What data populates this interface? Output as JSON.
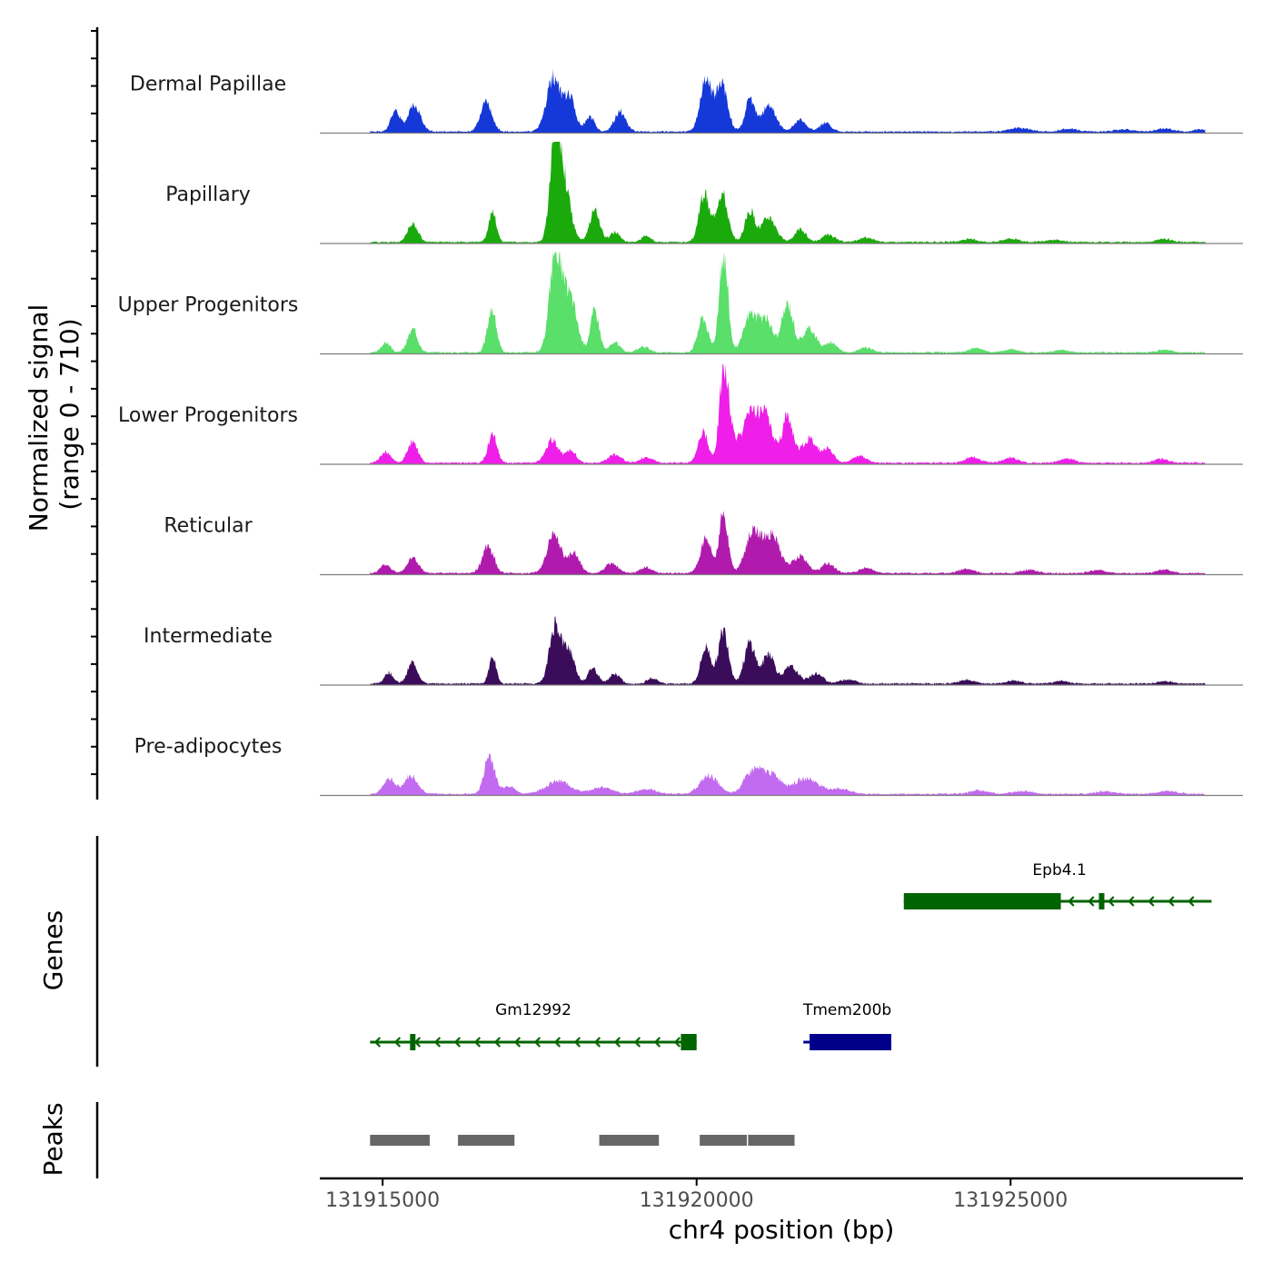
{
  "chart_data": {
    "type": "area",
    "title": "",
    "xlabel": "chr4 position (bp)",
    "ylabel": "Normalized signal",
    "ylabel_range": "(range 0 - 710)",
    "xlim": [
      131914000,
      131928700
    ],
    "ylim": [
      0,
      710
    ],
    "x_ticks": [
      131915000,
      131920000,
      131925000
    ],
    "x_tick_labels": [
      "131915000",
      "131920000",
      "131925000"
    ],
    "series": [
      {
        "name": "Dermal Papillae",
        "color": "#1538D8",
        "peaks": [
          [
            131915200,
            145,
            70
          ],
          [
            131915500,
            190,
            100
          ],
          [
            131916650,
            210,
            90
          ],
          [
            131917720,
            380,
            110
          ],
          [
            131917980,
            230,
            90
          ],
          [
            131918300,
            110,
            70
          ],
          [
            131918780,
            140,
            90
          ],
          [
            131920150,
            360,
            90
          ],
          [
            131920400,
            350,
            90
          ],
          [
            131920850,
            220,
            80
          ],
          [
            131921150,
            190,
            110
          ],
          [
            131921650,
            90,
            90
          ],
          [
            131922050,
            60,
            90
          ],
          [
            131925150,
            25,
            150
          ],
          [
            131925950,
            18,
            150
          ],
          [
            131926800,
            15,
            150
          ],
          [
            131927450,
            22,
            120
          ],
          [
            131928050,
            15,
            120
          ]
        ]
      },
      {
        "name": "Papillary",
        "color": "#1AAA0C",
        "peaks": [
          [
            131915480,
            130,
            80
          ],
          [
            131916750,
            210,
            60
          ],
          [
            131917750,
            720,
            80
          ],
          [
            131917900,
            380,
            100
          ],
          [
            131918380,
            230,
            80
          ],
          [
            131918700,
            70,
            80
          ],
          [
            131919200,
            40,
            80
          ],
          [
            131920120,
            340,
            80
          ],
          [
            131920400,
            360,
            90
          ],
          [
            131920850,
            220,
            80
          ],
          [
            131921150,
            180,
            110
          ],
          [
            131921650,
            90,
            90
          ],
          [
            131922100,
            50,
            100
          ],
          [
            131922700,
            30,
            120
          ],
          [
            131924350,
            20,
            120
          ],
          [
            131925000,
            25,
            120
          ],
          [
            131925700,
            15,
            120
          ],
          [
            131927450,
            22,
            110
          ]
        ]
      },
      {
        "name": "Upper Progenitors",
        "color": "#59DF6A",
        "peaks": [
          [
            131915050,
            70,
            70
          ],
          [
            131915480,
            160,
            80
          ],
          [
            131916740,
            310,
            70
          ],
          [
            131917750,
            720,
            90
          ],
          [
            131917980,
            400,
            110
          ],
          [
            131918380,
            300,
            70
          ],
          [
            131918700,
            70,
            80
          ],
          [
            131919150,
            40,
            90
          ],
          [
            131920100,
            250,
            80
          ],
          [
            131920430,
            690,
            70
          ],
          [
            131920850,
            260,
            100
          ],
          [
            131921100,
            240,
            110
          ],
          [
            131921450,
            340,
            90
          ],
          [
            131921800,
            170,
            110
          ],
          [
            131922150,
            70,
            90
          ],
          [
            131922700,
            35,
            100
          ],
          [
            131924450,
            30,
            110
          ],
          [
            131925000,
            22,
            110
          ],
          [
            131925800,
            18,
            110
          ],
          [
            131927450,
            20,
            110
          ]
        ]
      },
      {
        "name": "Lower Progenitors",
        "color": "#EF1EE8",
        "peaks": [
          [
            131915050,
            80,
            80
          ],
          [
            131915480,
            150,
            80
          ],
          [
            131916750,
            200,
            70
          ],
          [
            131917700,
            160,
            100
          ],
          [
            131918000,
            90,
            80
          ],
          [
            131918700,
            60,
            100
          ],
          [
            131919200,
            40,
            100
          ],
          [
            131920100,
            220,
            80
          ],
          [
            131920430,
            600,
            70
          ],
          [
            131920550,
            180,
            90
          ],
          [
            131920850,
            330,
            120
          ],
          [
            131921100,
            320,
            110
          ],
          [
            131921450,
            330,
            90
          ],
          [
            131921800,
            170,
            120
          ],
          [
            131922100,
            90,
            90
          ],
          [
            131922600,
            50,
            110
          ],
          [
            131924400,
            40,
            120
          ],
          [
            131925000,
            35,
            110
          ],
          [
            131925900,
            30,
            120
          ],
          [
            131927400,
            28,
            110
          ]
        ]
      },
      {
        "name": "Reticular",
        "color": "#B01AAD",
        "peaks": [
          [
            131915050,
            60,
            80
          ],
          [
            131915480,
            110,
            90
          ],
          [
            131916680,
            190,
            90
          ],
          [
            131917730,
            280,
            110
          ],
          [
            131918050,
            140,
            90
          ],
          [
            131918650,
            70,
            100
          ],
          [
            131919200,
            40,
            100
          ],
          [
            131920150,
            240,
            90
          ],
          [
            131920430,
            420,
            70
          ],
          [
            131920900,
            290,
            120
          ],
          [
            131921200,
            260,
            130
          ],
          [
            131921650,
            120,
            120
          ],
          [
            131922100,
            70,
            100
          ],
          [
            131922700,
            40,
            110
          ],
          [
            131924300,
            30,
            120
          ],
          [
            131925300,
            25,
            120
          ],
          [
            131926400,
            22,
            120
          ],
          [
            131927450,
            25,
            110
          ]
        ]
      },
      {
        "name": "Intermediate",
        "color": "#3A0C5A",
        "peaks": [
          [
            131915100,
            80,
            70
          ],
          [
            131915480,
            150,
            80
          ],
          [
            131916750,
            200,
            55
          ],
          [
            131917750,
            420,
            90
          ],
          [
            131917970,
            230,
            90
          ],
          [
            131918350,
            110,
            80
          ],
          [
            131918700,
            70,
            80
          ],
          [
            131919300,
            40,
            80
          ],
          [
            131920150,
            260,
            80
          ],
          [
            131920430,
            380,
            80
          ],
          [
            131920850,
            290,
            90
          ],
          [
            131921150,
            220,
            90
          ],
          [
            131921500,
            120,
            110
          ],
          [
            131921900,
            70,
            110
          ],
          [
            131922400,
            30,
            120
          ],
          [
            131924300,
            25,
            120
          ],
          [
            131925050,
            20,
            120
          ],
          [
            131925800,
            18,
            120
          ],
          [
            131927450,
            18,
            110
          ]
        ]
      },
      {
        "name": "Pre-adipocytes",
        "color": "#C26BF0",
        "peaks": [
          [
            131915100,
            110,
            90
          ],
          [
            131915450,
            130,
            110
          ],
          [
            131916700,
            280,
            80
          ],
          [
            131917000,
            60,
            100
          ],
          [
            131917800,
            90,
            200
          ],
          [
            131918500,
            50,
            150
          ],
          [
            131919200,
            35,
            150
          ],
          [
            131920200,
            130,
            140
          ],
          [
            131920900,
            160,
            140
          ],
          [
            131921200,
            130,
            150
          ],
          [
            131921750,
            110,
            200
          ],
          [
            131922300,
            35,
            150
          ],
          [
            131924500,
            25,
            150
          ],
          [
            131925200,
            22,
            150
          ],
          [
            131926500,
            18,
            150
          ],
          [
            131927500,
            20,
            150
          ]
        ]
      }
    ],
    "genes": [
      {
        "name": "Epb4.1",
        "color": "#006400",
        "strand": "-",
        "start": 131923300,
        "end": 131928200,
        "utr": [
          131923300,
          131925800
        ],
        "exons": [
          131926450
        ]
      },
      {
        "name": "Gm12992",
        "color": "#006400",
        "strand": "-",
        "start": 131914800,
        "end": 131920000,
        "utr": [
          131919750,
          131920000
        ],
        "exons": [
          131915480
        ]
      },
      {
        "name": "Tmem200b",
        "color": "#00008B",
        "strand": "+",
        "start": 131921700,
        "end": 131923100,
        "utr": [
          131921800,
          131923100
        ],
        "exons": []
      }
    ],
    "peaks": [
      [
        131914800,
        131915750
      ],
      [
        131916200,
        131917100
      ],
      [
        131918450,
        131919400
      ],
      [
        131920050,
        131920800
      ],
      [
        131920820,
        131921560
      ]
    ],
    "gene_track_label": "Genes",
    "peak_track_label": "Peaks"
  }
}
